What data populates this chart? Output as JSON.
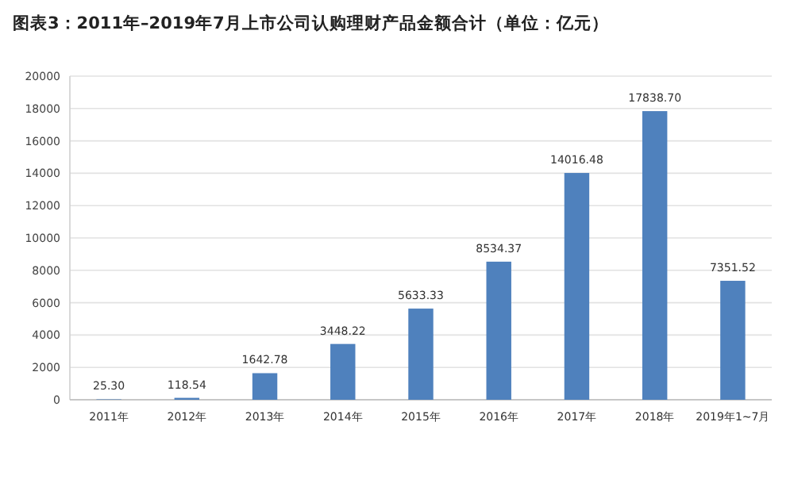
{
  "chart_data": {
    "type": "bar",
    "title": "图表3：2011年–2019年7月上市公司认购理财产品金额合计（单位：亿元）",
    "categories": [
      "2011年",
      "2012年",
      "2013年",
      "2014年",
      "2015年",
      "2016年",
      "2017年",
      "2018年",
      "2019年1~7月"
    ],
    "values": [
      25.3,
      118.54,
      1642.78,
      3448.22,
      5633.33,
      8534.37,
      14016.48,
      17838.7,
      7351.52
    ],
    "value_labels": [
      "25.30",
      "118.54",
      "1642.78",
      "3448.22",
      "5633.33",
      "8534.37",
      "14016.48",
      "17838.70",
      "7351.52"
    ],
    "color": "#4f81bd",
    "ylim": [
      0,
      20000
    ],
    "yticks": [
      0,
      2000,
      4000,
      6000,
      8000,
      10000,
      12000,
      14000,
      16000,
      18000,
      20000
    ],
    "grid": "y"
  }
}
